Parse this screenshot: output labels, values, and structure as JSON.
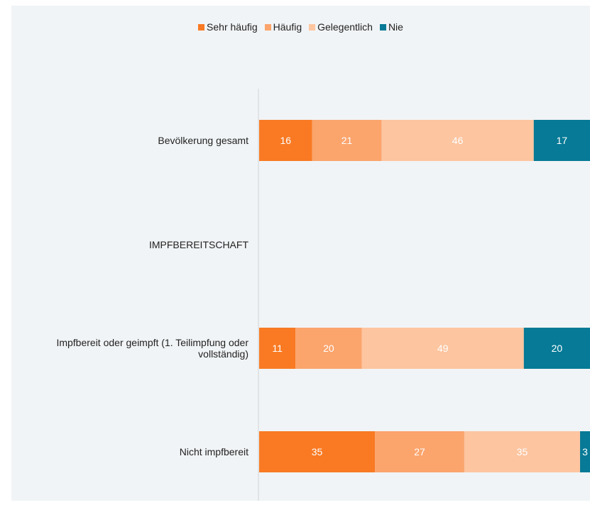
{
  "chart_data": {
    "type": "bar",
    "orientation": "horizontal",
    "stacked": true,
    "legend_position": "top-center",
    "grid": false,
    "xlim": [
      0,
      100
    ],
    "categories": [
      "Bevölkerung gesamt",
      "IMPFBEREITSCHAFT",
      "Impfbereit oder geimpft (1. Teilimpfung oder vollständig)",
      "Nicht impfbereit"
    ],
    "series": [
      {
        "name": "Sehr häufig",
        "color": "#f97a23",
        "values": [
          16,
          null,
          11,
          35
        ]
      },
      {
        "name": "Häufig",
        "color": "#fba46c",
        "values": [
          21,
          null,
          20,
          27
        ]
      },
      {
        "name": "Gelegentlich",
        "color": "#fdc5a0",
        "values": [
          46,
          null,
          49,
          35
        ]
      },
      {
        "name": "Nie",
        "color": "#067a96",
        "values": [
          17,
          null,
          20,
          3
        ]
      }
    ]
  }
}
